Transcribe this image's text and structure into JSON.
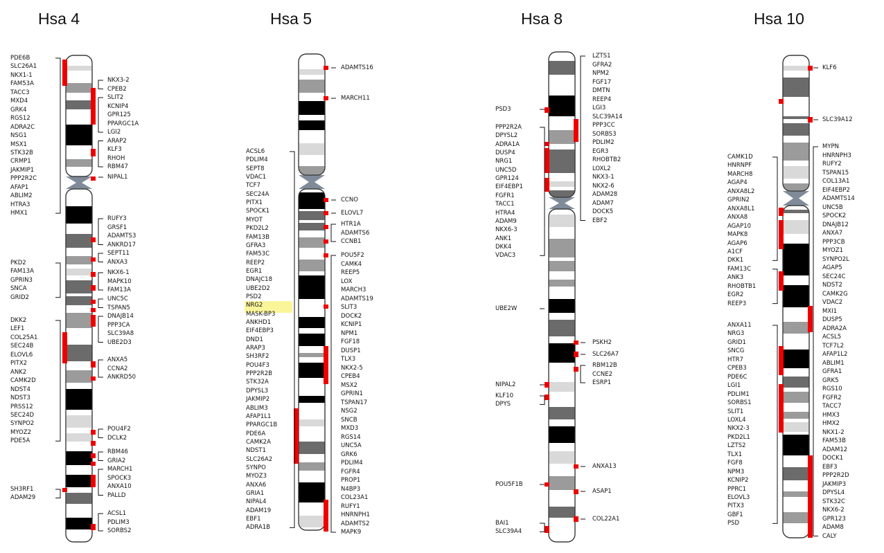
{
  "colors": {
    "marker": "#ee0000",
    "bracket": "#111111",
    "dark": "#000000",
    "mid": "#6b6b6b",
    "light": "#9b9b9b",
    "pale": "#d9d9d9",
    "centromere": "#7f8b99",
    "highlight": "#fbf59a"
  },
  "chromosomes": [
    {
      "title": "Hsa 4",
      "left_genes": [
        "PDE6B",
        "SLC26A1",
        "NKX1-1",
        "FAM53A",
        "TACC3",
        "MXD4",
        "GRK4",
        "RGS12",
        "ADRA2C",
        "NSG1",
        "MSX1",
        "STK32B",
        "CRMP1",
        "JAKMIP1",
        "PPP2R2C",
        "AFAP1",
        "ABLIM2",
        "HTRA3",
        "HMX1",
        "PKD2",
        "FAM13A",
        "GPRIN3",
        "SNCA",
        "GRID2",
        "DKK2",
        "LEF1",
        "COL25A1",
        "SEC24B",
        "ELOVL6",
        "PITX2",
        "ANK2",
        "CAMK2D",
        "NDST4",
        "NDST3",
        "PRSS12",
        "SEC24D",
        "SYNPO2",
        "MYOZ2",
        "PDE5A",
        "SH3RF1",
        "ADAM29"
      ],
      "right_genes": [
        "NKX3-2",
        "CPEB2",
        "SLIT2",
        "KCNIP4",
        "GPR125",
        "PPARGC1A",
        "LGI2",
        "ARAP2",
        "KLF3",
        "RHOH",
        "RBM47",
        "NIPAL1",
        "RUFY3",
        "GRSF1",
        "ADAMTS3",
        "ANKRD17",
        "SEPT11",
        "ANXA3",
        "NKX6-1",
        "MAPK10",
        "FAM13A",
        "UNC5C",
        "TSPAN5",
        "DNAJB14",
        "PPP3CA",
        "SLC39A8",
        "UBE2D3",
        "ANXA5",
        "CCNA2",
        "ANKRD50",
        "POU4F2",
        "DCLK2",
        "RBM46",
        "GRIA2",
        "MARCH1",
        "SPOCK3",
        "ANXA10",
        "PALLD",
        "ACSL1",
        "PDLIM3",
        "SORBS2"
      ]
    },
    {
      "title": "Hsa 5",
      "left_genes": [
        "ACSL6",
        "PDLIM4",
        "SEPT8",
        "VDAC1",
        "TCF7",
        "SEC24A",
        "PITX1",
        "SPOCK1",
        "MYOT",
        "PKD2L2",
        "FAM13B",
        "GFRA3",
        "FAM53C",
        "REEP2",
        "EGR1",
        "DNAJC18",
        "UBE2D2",
        "PSD2",
        "NRG2",
        "MASK-BP3",
        "ANKHD1",
        "EIF4EBP3",
        "DND1",
        "ARAP3",
        "SH3RF2",
        "POU4F3",
        "PPP2R2B",
        "STK32A",
        "DPYSL3",
        "JAKMIP2",
        "ABLIM3",
        "AFAP1L1",
        "PPARGC1B",
        "PDE6A",
        "CAMK2A",
        "NDST1",
        "SLC26A2",
        "SYNPO",
        "MYOZ3",
        "ANXA6",
        "GRIA1",
        "NIPAL4",
        "ADAM19",
        "EBF1",
        "ADRA1B"
      ],
      "right_genes": [
        "ADAMTS16",
        "MARCH11",
        "CCNO",
        "ELOVL7",
        "HTR1A",
        "ADAMTS6",
        "CCNB1",
        "POU5F2",
        "CAMK4",
        "REEP5",
        "LOX",
        "MARCH3",
        "ADAMTS19",
        "SLIT3",
        "DOCK2",
        "KCNIP1",
        "NPM1",
        "FGF18",
        "DUSP1",
        "TLX3",
        "NKX2-5",
        "CPEB4",
        "MSX2",
        "GPRIN1",
        "TSPAN17",
        "NSG2",
        "SNCB",
        "MXD3",
        "RGS14",
        "UNC5A",
        "GRK6",
        "PDLIM4",
        "FGFR4",
        "PROP1",
        "N4BP3",
        "COL23A1",
        "RUFY1",
        "HNRNPH1",
        "ADAMTS2",
        "MAPK9"
      ],
      "highlighted_gene": "NRG2"
    },
    {
      "title": "Hsa 8",
      "left_genes": [
        "PSD3",
        "PPP2R2A",
        "DPYSL2",
        "ADRA1A",
        "DUSP4",
        "NRG1",
        "UNC5D",
        "GPR124",
        "EIF4EBP1",
        "FGFR1",
        "TACC1",
        "HTRA4",
        "ADAM9",
        "NKX6-3",
        "ANK1",
        "DKK4",
        "VDAC3",
        "UBE2W",
        "NIPAL2",
        "KLF10",
        "DPYS",
        "POU5F1B",
        "BAI1",
        "SLC39A4"
      ],
      "right_genes": [
        "LZTS1",
        "GFRA2",
        "NPM2",
        "FGF17",
        "DMTN",
        "REEP4",
        "LGI3",
        "SLC39A14",
        "PPP3CC",
        "SORBS3",
        "PDLIM2",
        "EGR3",
        "RHOBTB2",
        "LOXL2",
        "NKX3-1",
        "NKX2-6",
        "ADAM28",
        "ADAM7",
        "DOCK5",
        "EBF2",
        "PSKH2",
        "SLC26A7",
        "RBM12B",
        "CCNE2",
        "ESRP1",
        "ANXA13",
        "ASAP1",
        "COL22A1"
      ]
    },
    {
      "title": "Hsa 10",
      "left_genes": [
        "CAMK1D",
        "HNRNPF",
        "MARCH8",
        "AGAP4",
        "ANXA8L2",
        "GPRIN2",
        "ANXA8L1",
        "ANXA8",
        "AGAP10",
        "MAPK8",
        "AGAP6",
        "A1CF",
        "DKK1",
        "FAM13C",
        "ANK3",
        "RHOBTB1",
        "EGR2",
        "REEP3",
        "ANXA11",
        "NRG3",
        "GRID1",
        "SNCG",
        "HTR7",
        "CPEB3",
        "PDE6C",
        "LGI1",
        "PDLIM1",
        "SORBS1",
        "SLIT1",
        "LOXL4",
        "NKX2-3",
        "PKD2L1",
        "LZTS2",
        "TLX1",
        "FGF8",
        "NPM3",
        "KCNIP2",
        "PPRC1",
        "ELOVL3",
        "PITX3",
        "GBF1",
        "PSD"
      ],
      "right_genes": [
        "KLF6",
        "SLC39A12",
        "MYPN",
        "HNRNPH3",
        "RUFY2",
        "TSPAN15",
        "COL13A1",
        "EIF4EBP2",
        "ADAMTS14",
        "UNC5B",
        "SPOCK2",
        "DNAJB12",
        "ANXA7",
        "PPP3CB",
        "MYOZ1",
        "SYNPO2L",
        "AGAP5",
        "SEC24C",
        "NDST2",
        "CAMK2G",
        "VDAC2",
        "MXI1",
        "DUSP5",
        "ADRA2A",
        "ACSL5",
        "TCF7L2",
        "AFAP1L2",
        "ABLIM1",
        "GFRA1",
        "GRK5",
        "RGS10",
        "FGFR2",
        "TACC7",
        "HMX3",
        "HMX2",
        "NKX1-2",
        "FAM53B",
        "ADAM12",
        "DOCK1",
        "EBF3",
        "PPP2R2D",
        "JAKMIP3",
        "DPYSL4",
        "STK32C",
        "NKX6-2",
        "GPR123",
        "ADAM8",
        "CALY"
      ]
    }
  ]
}
